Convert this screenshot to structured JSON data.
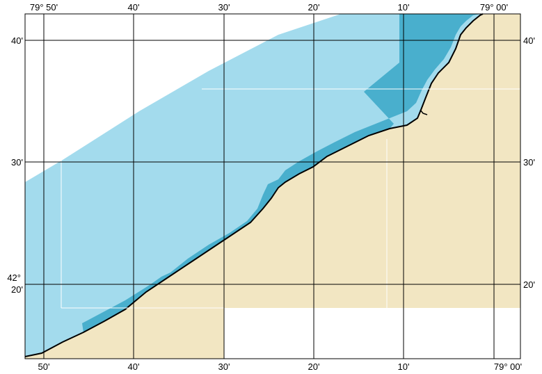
{
  "map": {
    "colors": {
      "water_deep": "#a3dbed",
      "water_shallow": "#49afcd",
      "land": "#f2e6c2",
      "coastline": "#000000",
      "gridline": "#000000",
      "background": "#ffffff"
    },
    "top_labels": [
      "79° 50'",
      "40'",
      "30'",
      "20'",
      "10'",
      "79° 00'"
    ],
    "bottom_labels": [
      "50'",
      "40'",
      "30'",
      "20'",
      "10'",
      "79° 00'"
    ],
    "left_labels": [
      "40'",
      "30'",
      "42°",
      "20'"
    ],
    "right_labels": [
      "40'",
      "30'",
      "20'"
    ]
  }
}
